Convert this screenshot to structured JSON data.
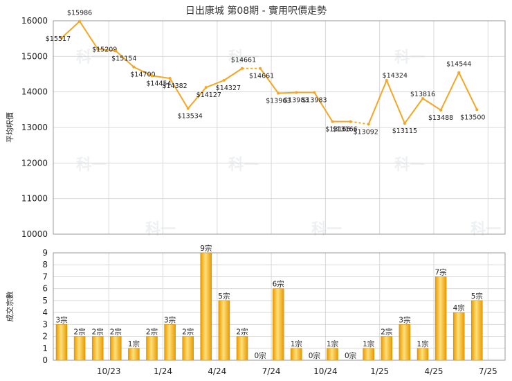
{
  "title": "日出康城 第08期 - 實用呎價走勢",
  "watermark": "科一",
  "colors": {
    "line": "#f5a623",
    "bar_light": "#fdd25a",
    "bar_dark": "#e89a00",
    "grid": "#d9d9d9",
    "axis": "#999999"
  },
  "chart_data": [
    {
      "type": "line",
      "ylabel": "平均呎價",
      "ylim": [
        10000,
        16000
      ],
      "yticks": [
        10000,
        11000,
        12000,
        13000,
        14000,
        15000,
        16000
      ],
      "x_tick_labels": [
        "10/23",
        "1/24",
        "4/24",
        "7/24",
        "10/24",
        "1/25",
        "4/25",
        "7/25"
      ],
      "points": [
        {
          "i": 0,
          "y": 15517,
          "label": "$15517"
        },
        {
          "i": 1,
          "y": 15986,
          "label": "$15986"
        },
        {
          "i": 2,
          "y": 15209,
          "label": "$15209"
        },
        {
          "i": 3,
          "y": 15154,
          "label": "$15154"
        },
        {
          "i": 4,
          "y": 14700,
          "label": "$14700"
        },
        {
          "i": 5,
          "y": 14454,
          "label": "$14454"
        },
        {
          "i": 6,
          "y": 14382,
          "label": "$14382"
        },
        {
          "i": 7,
          "y": 13534,
          "label": "$13534"
        },
        {
          "i": 8,
          "y": 14127,
          "label": "$14127"
        },
        {
          "i": 9,
          "y": 14327,
          "label": "$14327"
        },
        {
          "i": 10,
          "y": 14661,
          "label": "$14661"
        },
        {
          "i": 11,
          "y": 14661,
          "label": "$14661"
        },
        {
          "i": 12,
          "y": 13963,
          "label": "$13963"
        },
        {
          "i": 13,
          "y": 13983,
          "label": "$13983"
        },
        {
          "i": 14,
          "y": 13983,
          "label": "$13983"
        },
        {
          "i": 15,
          "y": 13166,
          "label": "$13166"
        },
        {
          "i": 16,
          "y": 13166,
          "label": "$13166"
        },
        {
          "i": 17,
          "y": 13092,
          "label": "$13092"
        },
        {
          "i": 18,
          "y": 14324,
          "label": "$14324"
        },
        {
          "i": 19,
          "y": 13115,
          "label": "$13115"
        },
        {
          "i": 20,
          "y": 13816,
          "label": "$13816"
        },
        {
          "i": 21,
          "y": 13488,
          "label": "$13488"
        },
        {
          "i": 22,
          "y": 14544,
          "label": "$14544"
        },
        {
          "i": 23,
          "y": 13500,
          "label": "$13500"
        }
      ],
      "dashed_segments": [
        [
          10,
          11
        ],
        [
          16,
          17
        ]
      ]
    },
    {
      "type": "bar",
      "ylabel": "成交宗數",
      "ylim": [
        0,
        9
      ],
      "yticks": [
        0,
        1,
        2,
        3,
        4,
        5,
        6,
        7,
        8,
        9
      ],
      "x_tick_labels": [
        "10/23",
        "1/24",
        "4/24",
        "7/24",
        "10/24",
        "1/25",
        "4/25",
        "7/25"
      ],
      "values": [
        3,
        2,
        2,
        2,
        1,
        2,
        3,
        2,
        9,
        5,
        2,
        0,
        6,
        1,
        0,
        1,
        0,
        1,
        2,
        3,
        1,
        7,
        4,
        5
      ],
      "labels": [
        "3宗",
        "2宗",
        "2宗",
        "2宗",
        "1宗",
        "2宗",
        "3宗",
        "2宗",
        "9宗",
        "5宗",
        "2宗",
        "0宗",
        "6宗",
        "1宗",
        "0宗",
        "1宗",
        "0宗",
        "1宗",
        "2宗",
        "3宗",
        "1宗",
        "7宗",
        "4宗",
        "5宗"
      ]
    }
  ]
}
